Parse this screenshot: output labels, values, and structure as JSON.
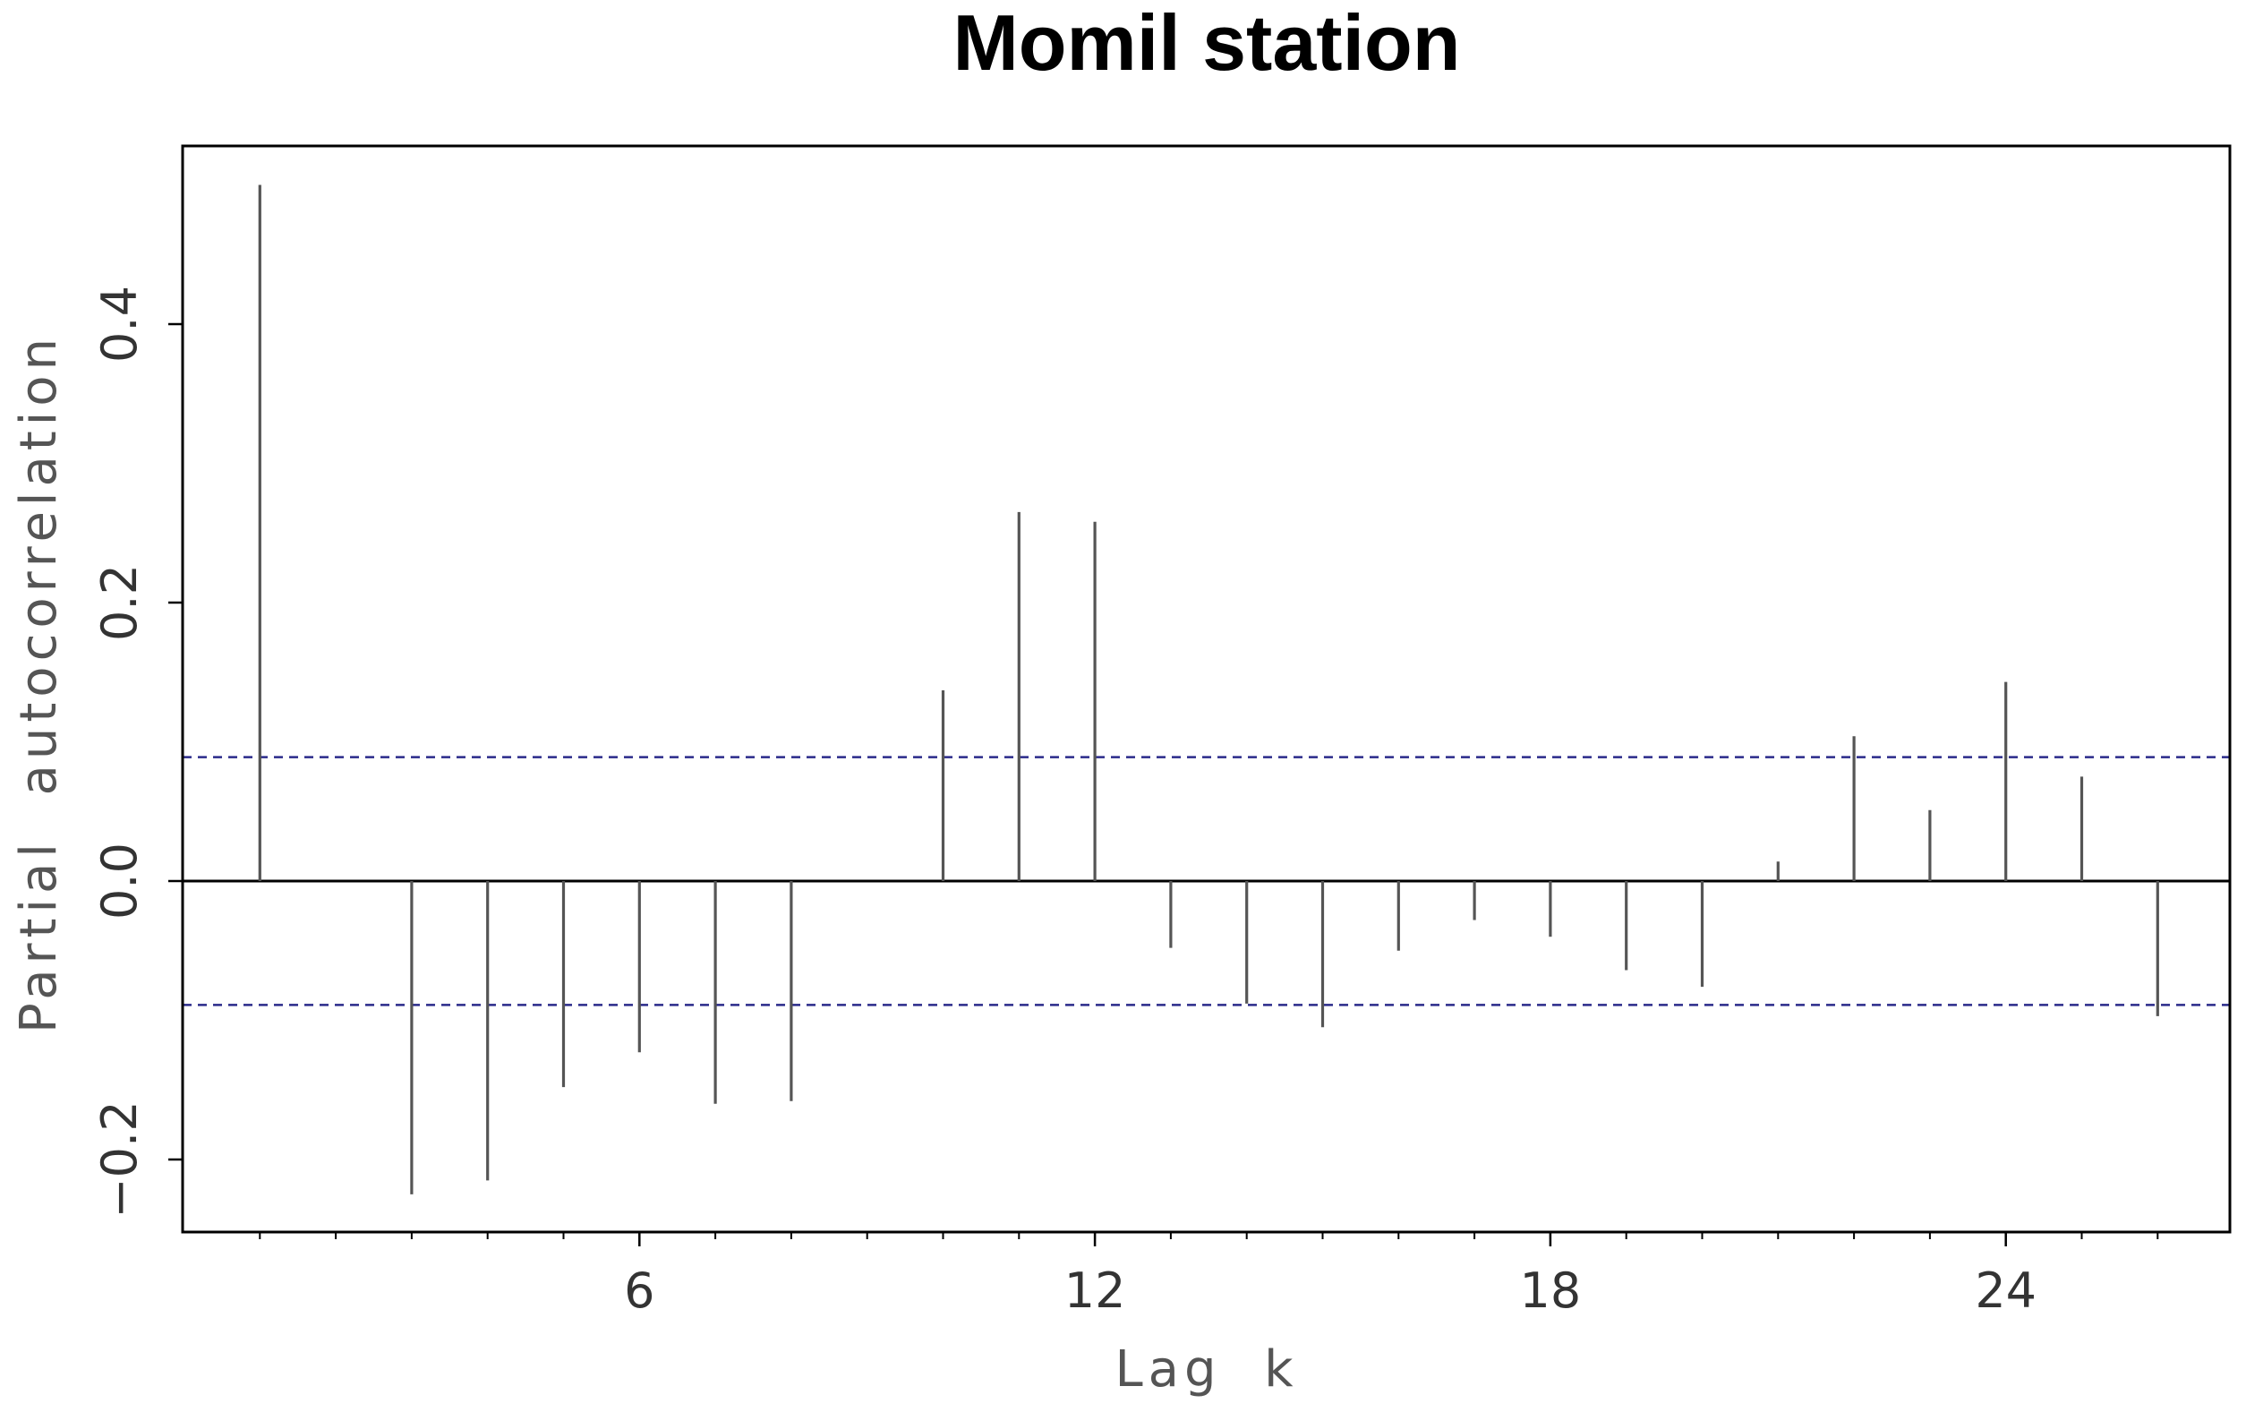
{
  "chart_data": {
    "type": "bar",
    "title": "Momil station",
    "xlabel": "Lag  k",
    "ylabel": "Partial  autocorrelation",
    "x": [
      1,
      2,
      3,
      4,
      5,
      6,
      7,
      8,
      9,
      10,
      11,
      12,
      13,
      14,
      15,
      16,
      17,
      18,
      19,
      20,
      21,
      22,
      23,
      24,
      25,
      26
    ],
    "values": [
      0.5,
      0.0,
      -0.225,
      -0.215,
      -0.148,
      -0.123,
      -0.16,
      -0.158,
      0.0,
      0.137,
      0.265,
      0.258,
      -0.048,
      -0.088,
      -0.105,
      -0.05,
      -0.028,
      -0.04,
      -0.064,
      -0.076,
      0.014,
      0.104,
      0.051,
      0.143,
      0.075,
      -0.097
    ],
    "x_ticks": [
      6,
      12,
      18,
      24
    ],
    "x_tick_labels": [
      "6",
      "12",
      "18",
      "24"
    ],
    "y_ticks": [
      -0.2,
      0.0,
      0.2,
      0.4
    ],
    "y_tick_labels": [
      "−0.2",
      "0.0",
      "0.2",
      "0.4"
    ],
    "xlim": [
      0,
      27
    ],
    "ylim": [
      -0.255,
      0.53
    ],
    "confidence_bound": 0.089,
    "grid": false,
    "colors": {
      "bars": "#555555",
      "confidence_lines": "#2a2a8a",
      "zero_line": "#000000",
      "frame": "#000000"
    }
  }
}
